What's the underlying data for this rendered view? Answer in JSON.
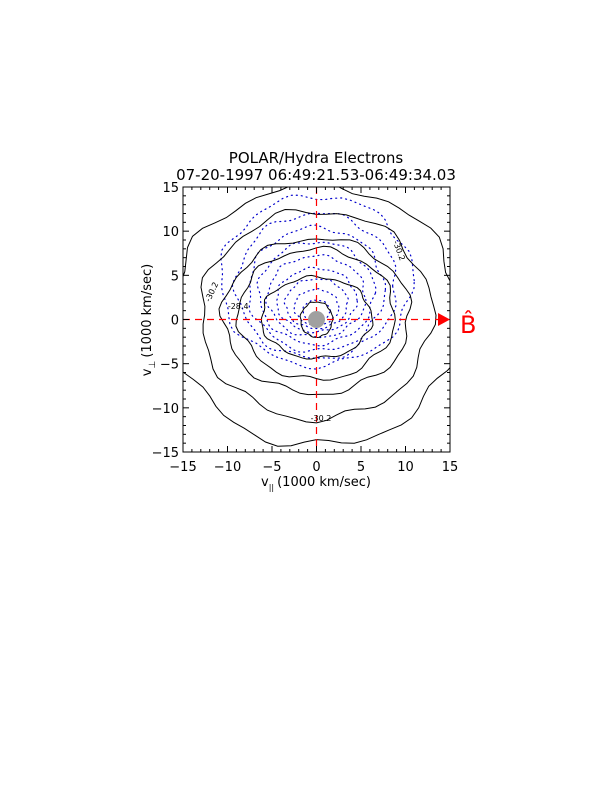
{
  "chart_data": {
    "type": "contour",
    "title": "POLAR/Hydra Electrons",
    "subtitle": "07-20-1997 06:49:21.53-06:49:34.03",
    "xlabel": "v",
    "xlabel_sub": "||",
    "xlabel_units": "(1000 km/sec)",
    "ylabel": "v",
    "ylabel_sub": "⊥",
    "ylabel_units": "(1000 km/sec)",
    "xlim": [
      -15,
      15
    ],
    "ylim": [
      -15,
      15
    ],
    "xticks": [
      -15,
      -10,
      -5,
      0,
      5,
      10,
      15
    ],
    "yticks": [
      -15,
      -10,
      -5,
      0,
      5,
      10,
      15
    ],
    "field_label": "B̂",
    "contour_labels": [
      {
        "text": "-30.2",
        "x": -11.5,
        "y": 3.0,
        "rotate": -65
      },
      {
        "text": "-28.4",
        "x": -8.8,
        "y": 1.2,
        "rotate": 0
      },
      {
        "text": "-30.2",
        "x": 9.0,
        "y": 7.7,
        "rotate": 70
      },
      {
        "text": "-30.2",
        "x": 0.5,
        "y": -11.5,
        "rotate": 0
      }
    ],
    "solid_contours": [
      {
        "cx": 0,
        "cy": 0,
        "rx": 1.8,
        "ry": 2.0
      },
      {
        "cx": 0,
        "cy": 0.2,
        "rx": 6.2,
        "ry": 4.6
      },
      {
        "cx": 0,
        "cy": 0.6,
        "rx": 8.8,
        "ry": 7.4
      },
      {
        "cx": 0,
        "cy": 0.4,
        "rx": 10.5,
        "ry": 8.8
      },
      {
        "cx": 0,
        "cy": 0.5,
        "rx": 13.0,
        "ry": 11.8
      },
      {
        "cx": 0,
        "cy": 0.5,
        "rx": 16.2,
        "ry": 14.8
      }
    ],
    "dotted_contours": [
      {
        "cx": 0,
        "cy": 1.0,
        "rx": 1.5,
        "ry": 1.2
      },
      {
        "cx": 0,
        "cy": 1.4,
        "rx": 2.5,
        "ry": 2.0
      },
      {
        "cx": 0,
        "cy": 1.8,
        "rx": 3.5,
        "ry": 2.8
      },
      {
        "cx": 0,
        "cy": 2.2,
        "rx": 4.5,
        "ry": 3.6
      },
      {
        "cx": 0,
        "cy": 2.6,
        "rx": 5.5,
        "ry": 4.6
      },
      {
        "cx": 0,
        "cy": 3.0,
        "rx": 6.5,
        "ry": 5.8
      },
      {
        "cx": 0,
        "cy": 3.4,
        "rx": 7.6,
        "ry": 7.0
      },
      {
        "cx": 0,
        "cy": 3.8,
        "rx": 9.0,
        "ry": 8.2
      },
      {
        "cx": 0,
        "cy": 4.4,
        "rx": 10.8,
        "ry": 9.6
      }
    ],
    "grid": false,
    "colors": {
      "axes": "#000000",
      "solid_contour": "#000000",
      "dotted_contour": "#0000cc",
      "field_direction": "#ff0000",
      "origin_disc": "#a0a0a0"
    }
  }
}
